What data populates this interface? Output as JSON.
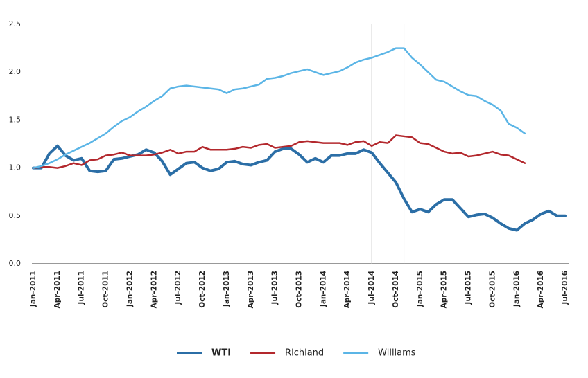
{
  "chart_data": {
    "type": "line",
    "categories": [
      "Jan-2011",
      null,
      null,
      "Apr-2011",
      null,
      null,
      "Jul-2011",
      null,
      null,
      "Oct-2011",
      null,
      null,
      "Jan-2012",
      null,
      null,
      "Apr-2012",
      null,
      null,
      "Jul-2012",
      null,
      null,
      "Oct-2012",
      null,
      null,
      "Jan-2013",
      null,
      null,
      "Apr-2013",
      null,
      null,
      "Jul-2013",
      null,
      null,
      "Oct-2013",
      null,
      null,
      "Jan-2014",
      null,
      null,
      "Apr-2014",
      null,
      null,
      "Jul-2014",
      null,
      null,
      "Oct-2014",
      null,
      null,
      "Jan-2015",
      null,
      null,
      "Apr-2015",
      null,
      null,
      "Jul-2015",
      null,
      null,
      "Oct-2015",
      null,
      null,
      "Jan-2016",
      null,
      null,
      "Apr-2016",
      null,
      null,
      "Jul-2016"
    ],
    "series": [
      {
        "name": "WTI",
        "color": "#2b6ea6",
        "highlight": true,
        "values": [
          1.0,
          1.0,
          1.15,
          1.23,
          1.13,
          1.08,
          1.1,
          0.97,
          0.96,
          0.97,
          1.09,
          1.1,
          1.12,
          1.14,
          1.19,
          1.16,
          1.07,
          0.93,
          0.99,
          1.05,
          1.06,
          1.0,
          0.97,
          0.99,
          1.06,
          1.07,
          1.04,
          1.03,
          1.06,
          1.08,
          1.17,
          1.2,
          1.2,
          1.14,
          1.06,
          1.1,
          1.06,
          1.13,
          1.13,
          1.15,
          1.15,
          1.19,
          1.16,
          1.05,
          0.95,
          0.85,
          0.68,
          0.54,
          0.57,
          0.54,
          0.62,
          0.67,
          0.67,
          0.58,
          0.49,
          0.51,
          0.52,
          0.48,
          0.42,
          0.37,
          0.35,
          0.42,
          0.46,
          0.52,
          0.55,
          0.5,
          0.5
        ]
      },
      {
        "name": "Richland",
        "color": "#b3282d",
        "highlight": false,
        "values": [
          1.0,
          1.01,
          1.01,
          1.0,
          1.02,
          1.05,
          1.03,
          1.08,
          1.09,
          1.13,
          1.14,
          1.16,
          1.13,
          1.13,
          1.13,
          1.14,
          1.16,
          1.19,
          1.15,
          1.17,
          1.17,
          1.22,
          1.19,
          1.19,
          1.19,
          1.2,
          1.22,
          1.21,
          1.24,
          1.25,
          1.21,
          1.22,
          1.23,
          1.27,
          1.28,
          1.27,
          1.26,
          1.26,
          1.26,
          1.24,
          1.27,
          1.28,
          1.23,
          1.27,
          1.26,
          1.34,
          1.33,
          1.32,
          1.26,
          1.25,
          1.21,
          1.17,
          1.15,
          1.16,
          1.12,
          1.13,
          1.15,
          1.17,
          1.14,
          1.13,
          1.09,
          1.05,
          null,
          null,
          null,
          null,
          null
        ]
      },
      {
        "name": "Williams",
        "color": "#5bb5e6",
        "highlight": false,
        "values": [
          1.0,
          1.02,
          1.05,
          1.09,
          1.14,
          1.18,
          1.22,
          1.26,
          1.31,
          1.36,
          1.43,
          1.49,
          1.53,
          1.59,
          1.64,
          1.7,
          1.75,
          1.83,
          1.85,
          1.86,
          1.85,
          1.84,
          1.83,
          1.82,
          1.78,
          1.82,
          1.83,
          1.85,
          1.87,
          1.93,
          1.94,
          1.96,
          1.99,
          2.01,
          2.03,
          2.0,
          1.97,
          1.99,
          2.01,
          2.05,
          2.1,
          2.13,
          2.15,
          2.18,
          2.21,
          2.25,
          2.25,
          2.15,
          2.08,
          2.0,
          1.92,
          1.9,
          1.85,
          1.8,
          1.76,
          1.75,
          1.7,
          1.66,
          1.6,
          1.46,
          1.42,
          1.36,
          null,
          null,
          null,
          null,
          null
        ]
      }
    ],
    "vlines": [
      42,
      46
    ],
    "ylim": [
      0,
      2.5
    ],
    "yticks": [
      {
        "value": 0,
        "label": "0.0"
      },
      0.5,
      {
        "value": 1,
        "label": "1.0"
      },
      1.5,
      {
        "value": 2,
        "label": "2.0"
      },
      2.5
    ],
    "grid": false,
    "legend": "bottom"
  }
}
